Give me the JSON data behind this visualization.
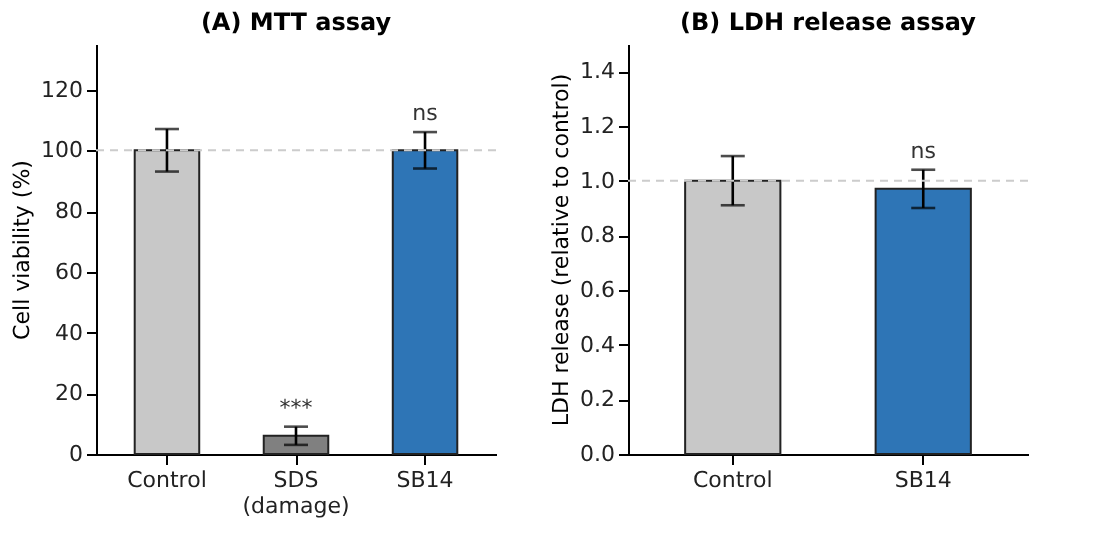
{
  "chart_data": [
    {
      "type": "bar",
      "title": "(A) MTT assay",
      "ylabel": "Cell viability (%)",
      "categories": [
        "Control",
        "SDS\n(damage)",
        "SB14"
      ],
      "values": [
        100,
        6,
        100
      ],
      "colors": [
        "#c8c8c8",
        "#808080",
        "#2e75b6"
      ],
      "errors": [
        7,
        3,
        6
      ],
      "ylim": [
        0,
        135
      ],
      "yticks": [
        0,
        20,
        40,
        60,
        80,
        100,
        120
      ],
      "grid": false,
      "ref_lines": [
        {
          "axis": "y",
          "value": 100,
          "color": "#cccccc",
          "line_style": "dashed"
        }
      ],
      "value_labels": [
        null,
        "***",
        "ns"
      ]
    },
    {
      "type": "bar",
      "title": "(B) LDH release assay",
      "ylabel": "LDH release (relative to control)",
      "categories": [
        "Control",
        "SB14"
      ],
      "values": [
        1.0,
        0.97
      ],
      "colors": [
        "#c8c8c8",
        "#2e75b6"
      ],
      "errors": [
        0.09,
        [
          0.9,
          1.04
        ]
      ],
      "ylim": [
        0,
        1.5
      ],
      "yticks": [
        {
          "value": 0,
          "label": "0.0"
        },
        {
          "value": 0.2,
          "label": "0.2"
        },
        {
          "value": 0.4,
          "label": "0.4"
        },
        {
          "value": 0.6,
          "label": "0.6"
        },
        {
          "value": 0.8,
          "label": "0.8"
        },
        {
          "value": 1.0,
          "label": "1.0"
        },
        {
          "value": 1.2,
          "label": "1.2"
        },
        {
          "value": 1.4,
          "label": "1.4"
        }
      ],
      "grid": false,
      "ref_lines": [
        {
          "axis": "y",
          "value": 1.0,
          "color": "#cccccc",
          "line_style": "dashed"
        }
      ],
      "value_labels": [
        null,
        "ns"
      ]
    }
  ]
}
